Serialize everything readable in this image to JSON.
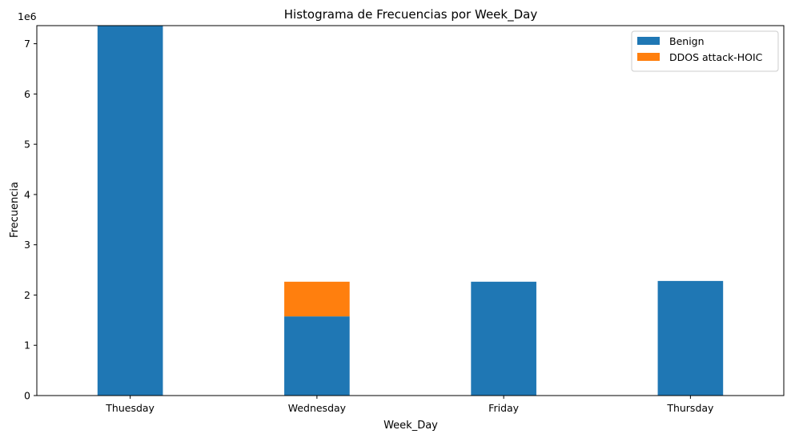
{
  "chart_data": {
    "type": "bar",
    "stacked": true,
    "title": "Histograma de Frecuencias por Week_Day",
    "xlabel": "Week_Day",
    "ylabel": "Frecuencia",
    "y_offset_label": "1e6",
    "categories": [
      "Thuesday",
      "Wednesday",
      "Friday",
      "Thursday"
    ],
    "series": [
      {
        "name": "Benign",
        "color": "#1f77b4",
        "values": [
          7380000,
          1575000,
          2265000,
          2280000
        ]
      },
      {
        "name": "DDOS attack-HOIC",
        "color": "#ff7f0e",
        "values": [
          0,
          690000,
          0,
          0
        ]
      }
    ],
    "ylim": [
      0,
      7360000
    ],
    "yticks": [
      0,
      1,
      2,
      3,
      4,
      5,
      6,
      7
    ],
    "grid": false,
    "legend_position": "top-right"
  }
}
